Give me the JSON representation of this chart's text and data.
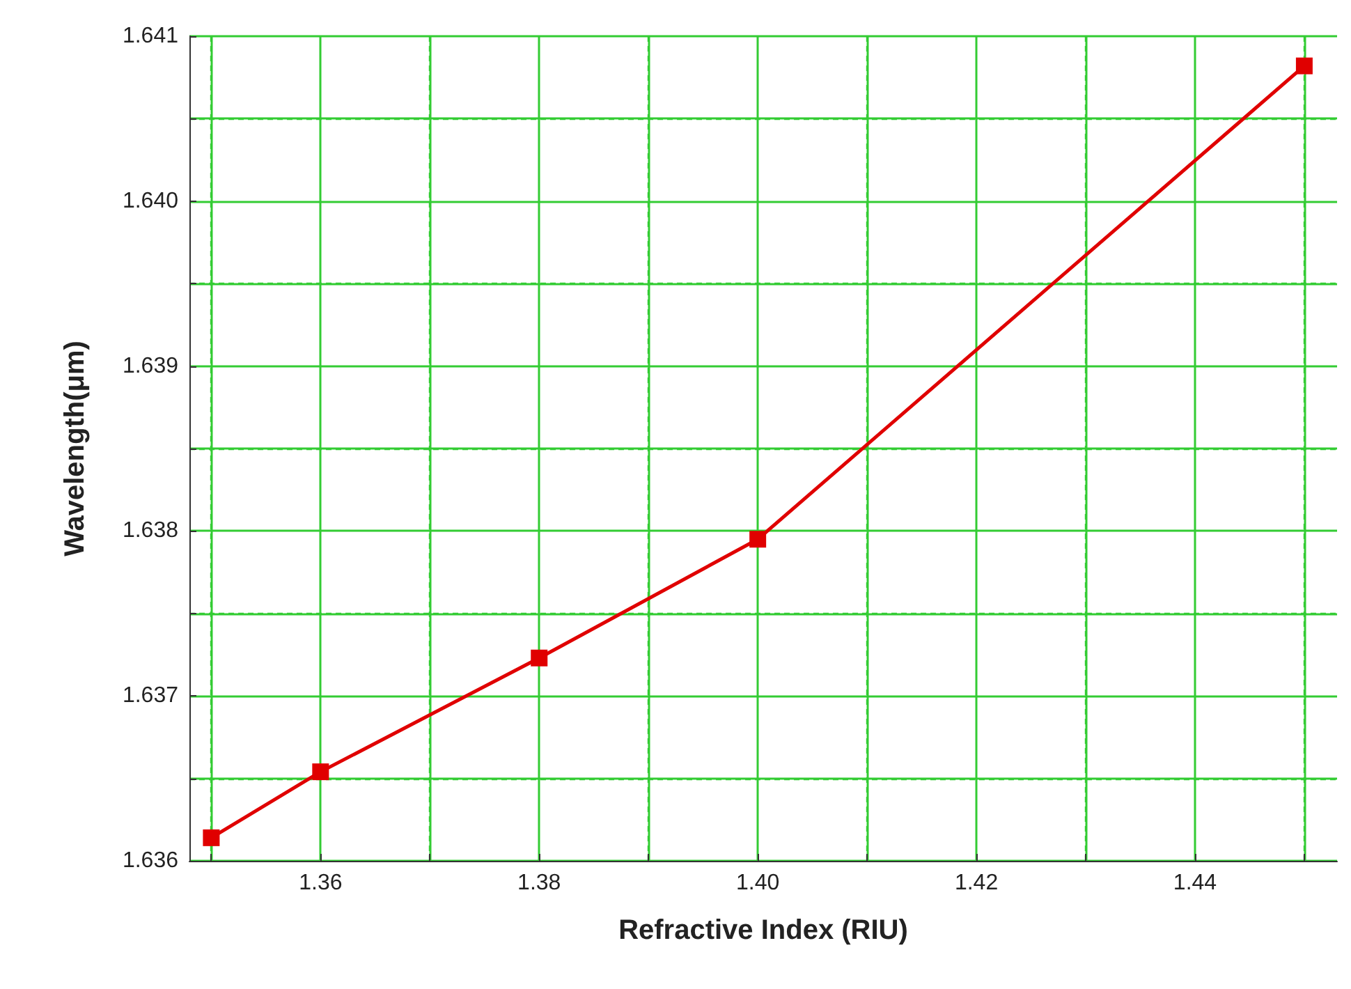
{
  "chart_data": {
    "type": "line",
    "xlabel": "Refractive Index (RIU)",
    "ylabel": "Wavelength(μm)",
    "x": [
      1.35,
      1.36,
      1.38,
      1.4,
      1.45
    ],
    "series": [
      {
        "color": "#e00000",
        "values": [
          1.63614,
          1.63654,
          1.63723,
          1.63795,
          1.64082
        ]
      }
    ],
    "xlim": [
      1.348,
      1.453
    ],
    "xticks": [
      {
        "value": 1.35,
        "label": null
      },
      1.36,
      {
        "value": 1.37,
        "label": null
      },
      1.38,
      {
        "value": 1.39,
        "label": null
      },
      "1.40",
      {
        "value": 1.41,
        "label": null
      },
      1.42,
      {
        "value": 1.43,
        "label": null
      },
      1.44,
      {
        "value": 1.45,
        "label": null
      }
    ],
    "ylim": [
      1.636,
      1.641
    ],
    "yticks": [
      1.636,
      {
        "value": 1.6365,
        "label": null
      },
      1.637,
      {
        "value": 1.6375,
        "label": null
      },
      1.638,
      {
        "value": 1.6385,
        "label": null
      },
      1.639,
      {
        "value": 1.6395,
        "label": null
      },
      "1.640",
      {
        "value": 1.6405,
        "label": null
      },
      1.641
    ],
    "grid": true,
    "marker": "square",
    "line_style": "solid"
  }
}
